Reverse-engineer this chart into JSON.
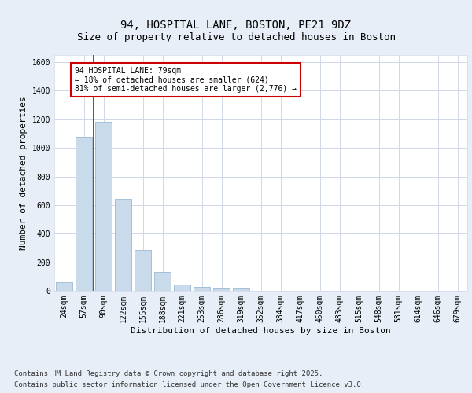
{
  "title_line1": "94, HOSPITAL LANE, BOSTON, PE21 9DZ",
  "title_line2": "Size of property relative to detached houses in Boston",
  "xlabel": "Distribution of detached houses by size in Boston",
  "ylabel": "Number of detached properties",
  "bar_labels": [
    "24sqm",
    "57sqm",
    "90sqm",
    "122sqm",
    "155sqm",
    "188sqm",
    "221sqm",
    "253sqm",
    "286sqm",
    "319sqm",
    "352sqm",
    "384sqm",
    "417sqm",
    "450sqm",
    "483sqm",
    "515sqm",
    "548sqm",
    "581sqm",
    "614sqm",
    "646sqm",
    "679sqm"
  ],
  "bar_values": [
    60,
    1080,
    1180,
    645,
    285,
    130,
    45,
    25,
    18,
    15,
    0,
    0,
    0,
    0,
    0,
    0,
    0,
    0,
    0,
    0,
    0
  ],
  "bar_color": "#c9daea",
  "bar_edge_color": "#9ab8d4",
  "property_size_sqm": 79,
  "vline_x": 1.5,
  "annotation_text": "94 HOSPITAL LANE: 79sqm\n← 18% of detached houses are smaller (624)\n81% of semi-detached houses are larger (2,776) →",
  "annotation_box_facecolor": "#ffffff",
  "annotation_box_edgecolor": "#cc0000",
  "vline_color": "#cc0000",
  "ylim": [
    0,
    1650
  ],
  "yticks": [
    0,
    200,
    400,
    600,
    800,
    1000,
    1200,
    1400,
    1600
  ],
  "footer_line1": "Contains HM Land Registry data © Crown copyright and database right 2025.",
  "footer_line2": "Contains public sector information licensed under the Open Government Licence v3.0.",
  "fig_facecolor": "#e8eef7",
  "axes_facecolor": "#ffffff",
  "grid_color": "#d0d8e8",
  "title_fontsize": 10,
  "subtitle_fontsize": 9,
  "axis_label_fontsize": 8,
  "tick_fontsize": 7,
  "annotation_fontsize": 7,
  "footer_fontsize": 6.5
}
